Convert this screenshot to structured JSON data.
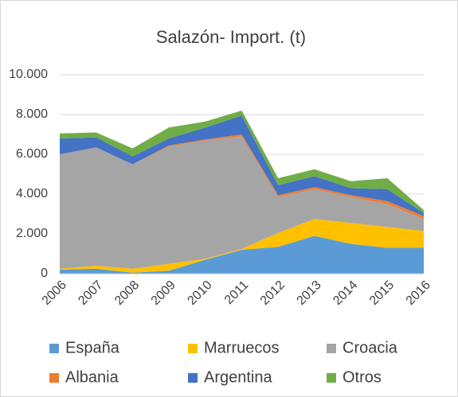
{
  "chart_data": {
    "type": "area",
    "stacked": true,
    "title": "Salazón- Import. (t)",
    "categories": [
      "2006",
      "2007",
      "2008",
      "2009",
      "2010",
      "2011",
      "2012",
      "2013",
      "2014",
      "2015",
      "2016"
    ],
    "series": [
      {
        "name": "España",
        "color": "#5b9bd5",
        "values": [
          200,
          250,
          50,
          150,
          700,
          1200,
          1350,
          1900,
          1500,
          1300,
          1300
        ]
      },
      {
        "name": "Marruecos",
        "color": "#ffc000",
        "values": [
          50,
          150,
          200,
          350,
          50,
          50,
          700,
          850,
          1050,
          1050,
          850
        ]
      },
      {
        "name": "Croacia",
        "color": "#a5a5a5",
        "values": [
          5750,
          5950,
          5250,
          5900,
          5950,
          5650,
          1800,
          1500,
          1300,
          1150,
          600
        ]
      },
      {
        "name": "Albania",
        "color": "#ed7d31",
        "values": [
          0,
          0,
          0,
          50,
          50,
          100,
          100,
          100,
          100,
          150,
          150
        ]
      },
      {
        "name": "Argentina",
        "color": "#4472c4",
        "values": [
          800,
          500,
          400,
          350,
          600,
          950,
          500,
          550,
          350,
          600,
          150
        ]
      },
      {
        "name": "Otros",
        "color": "#70ad47",
        "values": [
          250,
          250,
          400,
          550,
          300,
          250,
          350,
          350,
          350,
          550,
          150
        ]
      }
    ],
    "ylim": [
      0,
      10000
    ],
    "yticks": [
      0,
      {
        "value": 2000,
        "label": "2.000"
      },
      {
        "value": 4000,
        "label": "4.000"
      },
      {
        "value": 6000,
        "label": "6.000"
      },
      {
        "value": 8000,
        "label": "8.000"
      },
      {
        "value": 10000,
        "label": "10.000"
      }
    ],
    "grid": true,
    "legend": "bottom"
  }
}
